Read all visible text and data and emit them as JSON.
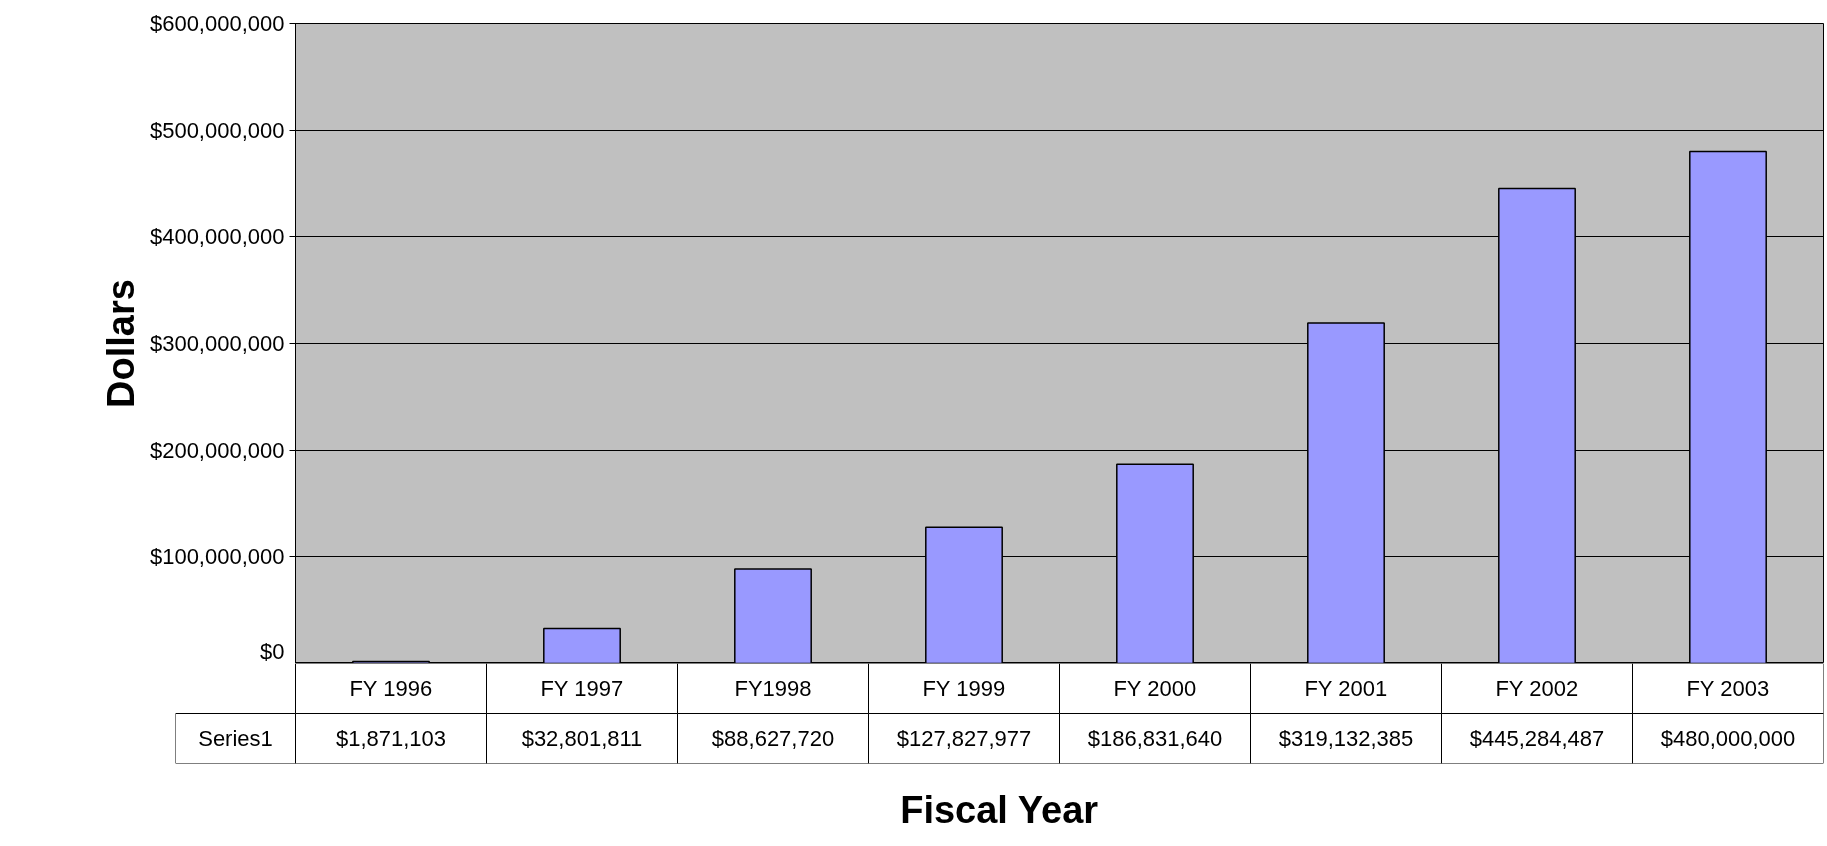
{
  "chart_data": {
    "type": "bar",
    "xlabel": "Fiscal Year",
    "ylabel": "Dollars",
    "categories": [
      "FY 1996",
      "FY 1997",
      "FY1998",
      "FY 1999",
      "FY 2000",
      "FY 2001",
      "FY 2002",
      "FY 2003"
    ],
    "series": [
      {
        "name": "Series1",
        "color": "#9999ff",
        "values": [
          1871103,
          32801811,
          88627720,
          127827977,
          186831640,
          319132385,
          445284487,
          480000000
        ],
        "value_labels": [
          "$1,871,103",
          "$32,801,811",
          "$88,627,720",
          "$127,827,977",
          "$186,831,640",
          "$319,132,385",
          "$445,284,487",
          "$480,000,000"
        ]
      }
    ],
    "ylim": [
      0,
      600000000
    ],
    "yticks": [
      {
        "value": 0,
        "label": "$0"
      },
      {
        "value": 100000000,
        "label": "$100,000,000"
      },
      {
        "value": 200000000,
        "label": "$200,000,000"
      },
      {
        "value": 300000000,
        "label": "$300,000,000"
      },
      {
        "value": 400000000,
        "label": "$400,000,000"
      },
      {
        "value": 500000000,
        "label": "$500,000,000"
      },
      {
        "value": 600000000,
        "label": "$600,000,000"
      }
    ],
    "grid": "y"
  }
}
